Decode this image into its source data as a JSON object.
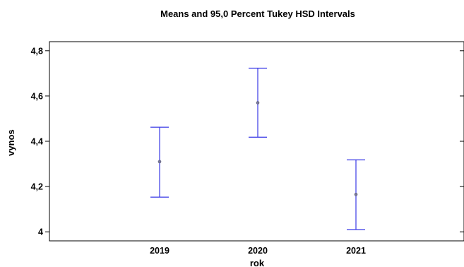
{
  "chart_data": {
    "type": "scatter",
    "subtype": "means-with-interval-bars",
    "title": "Means and 95,0 Percent Tukey HSD Intervals",
    "xlabel": "rok",
    "ylabel": "vynos",
    "categories": [
      "2019",
      "2020",
      "2021"
    ],
    "means": [
      4.31,
      4.57,
      4.165
    ],
    "lower": [
      4.153,
      4.418,
      4.01
    ],
    "upper": [
      4.462,
      4.723,
      4.318
    ],
    "ylim": [
      3.96,
      4.84
    ],
    "y_ticks": [
      4.0,
      4.2,
      4.4,
      4.6,
      4.8
    ],
    "y_tick_labels": [
      "4",
      "4,2",
      "4,4",
      "4,6",
      "4,8"
    ],
    "grid": false,
    "colors": {
      "interval": "#3a3ae6",
      "mean_point": "#7a7a9a",
      "axis": "#000000"
    }
  }
}
